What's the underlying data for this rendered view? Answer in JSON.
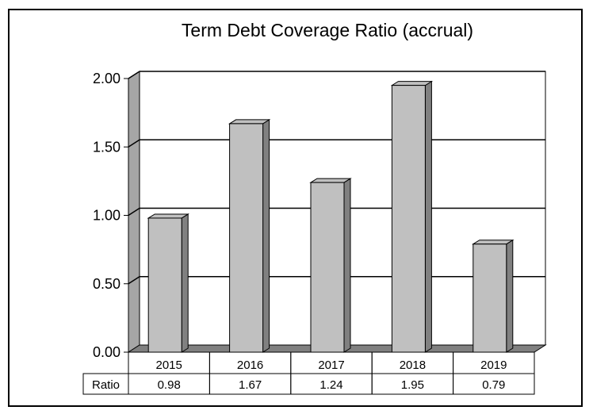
{
  "chart_data": {
    "type": "bar",
    "title": "Term Debt Coverage Ratio (accrual)",
    "categories": [
      "2015",
      "2016",
      "2017",
      "2018",
      "2019"
    ],
    "series": [
      {
        "name": "Ratio",
        "values": [
          0.98,
          1.67,
          1.24,
          1.95,
          0.79
        ],
        "labels": [
          "0.98",
          "1.67",
          "1.24",
          "1.95",
          "0.79"
        ]
      }
    ],
    "ylim": [
      0,
      2
    ],
    "yticks": [
      "0.00",
      "0.50",
      "1.00",
      "1.50",
      "2.00"
    ],
    "grid": true,
    "colors": {
      "bar_front": "#c0c0c0",
      "bar_side": "#808080",
      "wall": "#a6a6a6",
      "floor": "#808080"
    }
  }
}
